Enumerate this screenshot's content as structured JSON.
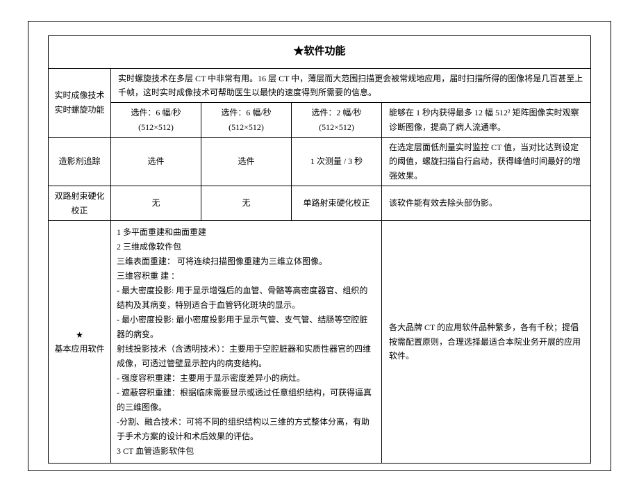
{
  "title": "★软件功能",
  "rows": {
    "row1": {
      "label": "实时成像技术\n实时螺旋功能",
      "span_text": "实时螺旋技术在多层 CT 中非常有用。16 层 CT 中，薄层而大范围扫描更会被常规地应用，届时扫描所得的图像将是几百甚至上千帧，这时实时成像技术可帮助医生以最快的速度得到所需要的信息。",
      "cell_a": "选件：6 幅/秒\n(512×512)",
      "cell_b": "选件：6 幅/秒\n(512×512)",
      "cell_c": "选件：2 幅/秒\n(512×512)",
      "cell_d": "能够在 1 秒内获得最多 12 幅 512² 矩阵图像实时观察诊断图像，提高了病人流通率。"
    },
    "row2": {
      "label": "造影剂追踪",
      "cell_a": "选件",
      "cell_b": "选件",
      "cell_c": "1 次测量 / 3 秒",
      "cell_d": "在选定层面低剂量实时监控 CT 值，当对比达到设定的阈值，螺旋扫描自行启动，获得峰值时间最好的增强效果。"
    },
    "row3": {
      "label": "双路射束硬化\n校正",
      "cell_a": "无",
      "cell_b": "无",
      "cell_c": "单路射束硬化校正",
      "cell_d": "该软件能有效去除头部伪影。"
    },
    "row4": {
      "label_star": "★",
      "label_text": "基本应用软件",
      "software_text": "1 多平面重建和曲面重建\n2 三维成像软件包\n三维表面重建：  可将连续扫描图像重建为三维立体图像。\n三维容积重 建 ：\n-  最大密度投影: 用于显示增强后的血管、骨骼等高密度器官、组织的结构及其病变，特别适合于血管钙化斑块的显示。\n-  最小密度投影: 最小密度投影用于显示气管、支气管、结肠等空腔脏器的病变。\n射线投影技术（含透明技术）：主要用于空腔脏器和实质性器官的四维成像，可透过管壁显示腔内的病变结构。\n-  强度容积重建：主要用于显示密度差异小的病灶。\n-  遮蔽容积重建：根据临床需要显示或透过任意组织结构，可获得逼真的三维图像。\n-分割、融合技术：可将不同的组织结构以三维的方式整体分离，有助于手术方案的设计和术后效果的评估。\n3 CT 血管造影软件包",
      "cell_d": "各大品牌 CT 的应用软件品种繁多，各有千秋；提倡按需配置原则，合理选择最适合本院业务开展的应用软件。"
    }
  }
}
